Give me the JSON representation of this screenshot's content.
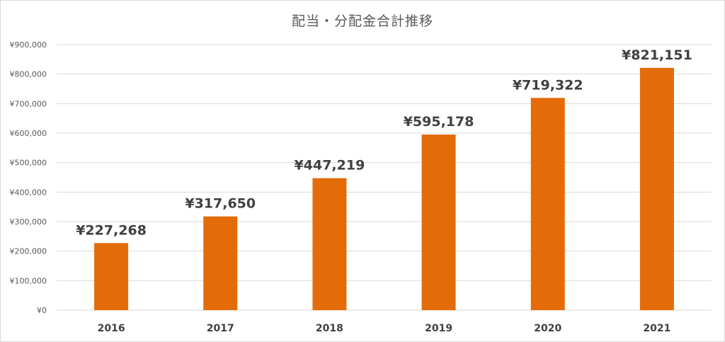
{
  "chart_data": {
    "type": "bar",
    "title": "配当・分配金合計推移",
    "xlabel": "",
    "ylabel": "",
    "categories": [
      "2016",
      "2017",
      "2018",
      "2019",
      "2020",
      "2021"
    ],
    "values": [
      227268,
      317650,
      447219,
      595178,
      719322,
      821151
    ],
    "data_labels": [
      "¥227,268",
      "¥317,650",
      "¥447,219",
      "¥595,178",
      "¥719,322",
      "¥821,151"
    ],
    "ylim": [
      0,
      900000
    ],
    "yticks": [
      0,
      100000,
      200000,
      300000,
      400000,
      500000,
      600000,
      700000,
      800000,
      900000
    ],
    "ytick_labels": [
      "¥0",
      "¥100,000",
      "¥200,000",
      "¥300,000",
      "¥400,000",
      "¥500,000",
      "¥600,000",
      "¥700,000",
      "¥800,000",
      "¥900,000"
    ],
    "grid": true,
    "legend": "none",
    "bar_color": "#E36C09",
    "grid_color": "#D9D9D9"
  }
}
